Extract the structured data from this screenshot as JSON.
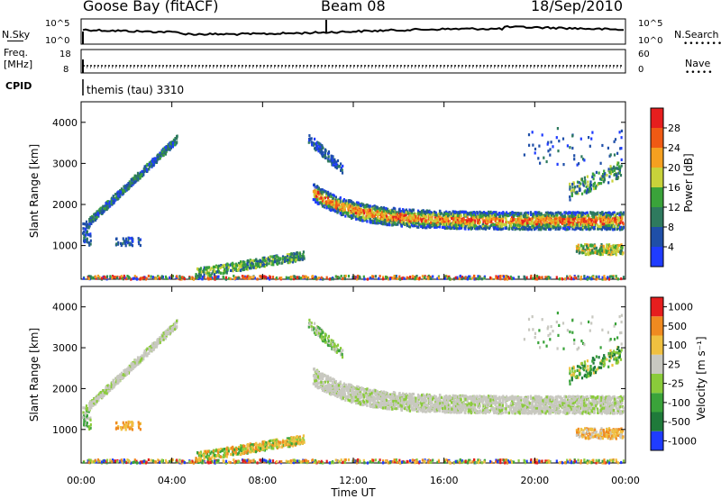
{
  "header": {
    "station": "Goose Bay (fitACF)",
    "beam": "Beam 08",
    "date": "18/Sep/2010"
  },
  "top_panels": {
    "nsky_label": "N.Sky",
    "nsky_ticks": [
      "10^5",
      "10^0"
    ],
    "nsearch_label": "N.Search",
    "freq_label_line1": "Freq.",
    "freq_label_line2": "[MHz]",
    "freq_ticks": [
      "18",
      "8"
    ],
    "nave_label": "Nave",
    "nave_ticks": [
      "60",
      "0"
    ],
    "cpid_label": "CPID",
    "cpid_value": "themis (tau) 3310"
  },
  "chart_data": [
    {
      "type": "heatmap",
      "name": "power",
      "ylabel": "Slant Range [km]",
      "yticks": [
        1000,
        2000,
        3000,
        4000
      ],
      "ylim": [
        180,
        4500
      ],
      "xlim": [
        0,
        24
      ],
      "colorbar_label": "Power [dB]",
      "colorbar_ticks": [
        "4",
        "8",
        "12",
        "16",
        "20",
        "24",
        "28"
      ],
      "colorbar_colors": [
        "#1f3cff",
        "#1f4fa8",
        "#2e7a5e",
        "#3aa33a",
        "#c8d23a",
        "#f5a020",
        "#f05a14",
        "#e61e1e"
      ]
    },
    {
      "type": "heatmap",
      "name": "velocity",
      "ylabel": "Slant Range [km]",
      "yticks": [
        1000,
        2000,
        3000,
        4000
      ],
      "ylim": [
        180,
        4500
      ],
      "xlim": [
        0,
        24
      ],
      "xlabel": "Time UT",
      "xticks": [
        "00:00",
        "04:00",
        "08:00",
        "12:00",
        "16:00",
        "20:00",
        "00:00"
      ],
      "colorbar_label": "Velocity [m s⁻¹]",
      "colorbar_ticks": [
        "1000",
        "500",
        "100",
        "25",
        "-25",
        "-100",
        "-500",
        "-1000"
      ],
      "colorbar_colors": [
        "#1f3cff",
        "#1f7a3a",
        "#3aa33a",
        "#8acb3a",
        "#c8c8c0",
        "#f0c040",
        "#f08a20",
        "#e61e1e"
      ]
    }
  ]
}
